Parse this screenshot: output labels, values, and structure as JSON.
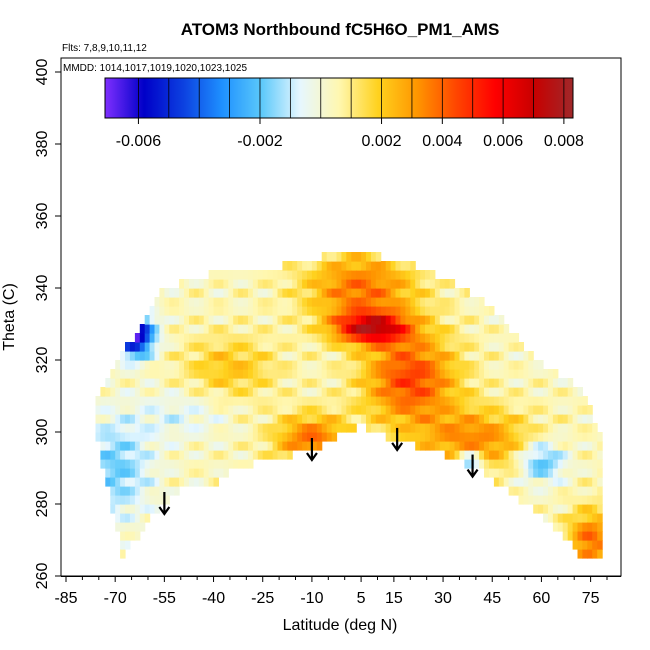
{
  "chart_data": {
    "type": "heatmap",
    "title": "ATOM3 Northbound fC5H6O_PM1_AMS",
    "flights_label": "Flts: 7,8,9,10,11,12",
    "mmdd_label": "MMDD: 1014,1017,1019,1020,1023,1025",
    "xlabel": "Latitude (deg N)",
    "ylabel": "Theta (C)",
    "xlim": [
      -85,
      85
    ],
    "ylim": [
      260,
      405
    ],
    "x_ticks": [
      -85,
      -70,
      -55,
      -40,
      -25,
      -10,
      5,
      15,
      30,
      45,
      60,
      75
    ],
    "y_ticks": [
      260,
      280,
      300,
      320,
      340,
      360,
      380,
      400
    ],
    "colorbar": {
      "range": [
        -0.0071,
        0.0083
      ],
      "tick_values": [
        -0.006,
        -0.002,
        0.002,
        0.004,
        0.006,
        0.008
      ],
      "tick_labels": [
        "-0.006",
        "-0.002",
        "0.002",
        "0.004",
        "0.006",
        "0.008"
      ],
      "colors": [
        "#7f2fff",
        "#0000c8",
        "#0c40e0",
        "#1e90ff",
        "#5ac8fa",
        "#e6f7ff",
        "#fff7b0",
        "#ffd21e",
        "#ff9600",
        "#ff4600",
        "#ff0000",
        "#c80000",
        "#a0282a"
      ]
    },
    "coverage_envelope": {
      "lats": [
        -76,
        -72,
        -68,
        -64,
        -60,
        -56,
        -52,
        -48,
        -44,
        -40,
        -35,
        -30,
        -25,
        -20,
        -15,
        -10,
        -5,
        0,
        5,
        10,
        15,
        20,
        25,
        30,
        35,
        40,
        45,
        50,
        55,
        60,
        65,
        70,
        72,
        75,
        78
      ],
      "theta_bottom": [
        300,
        283,
        266,
        270,
        276,
        279,
        283,
        285,
        285,
        285,
        289,
        291,
        292,
        293,
        294,
        295,
        297,
        300,
        302,
        300,
        298,
        297,
        295,
        294,
        292,
        290,
        287,
        284,
        280,
        277,
        273,
        268,
        264,
        264,
        265
      ],
      "theta_top": [
        308,
        315,
        323,
        326,
        333,
        339,
        341,
        342,
        343,
        344,
        344,
        345,
        345,
        346,
        347,
        348,
        349,
        349,
        350,
        349,
        348,
        347,
        345,
        343,
        340,
        338,
        335,
        329,
        323,
        319,
        316,
        314,
        311,
        306,
        300
      ]
    },
    "arrows_at_latitude": [
      -55,
      -10,
      16,
      39
    ]
  }
}
